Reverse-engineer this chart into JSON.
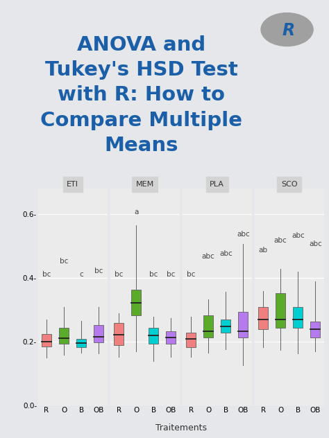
{
  "title_lines": [
    "ANOVA and",
    "Tukey's HSD Test",
    "with R: How to",
    "Compare Multiple",
    "Means"
  ],
  "title_color": "#1a5fa8",
  "title_bg": "#e5e7eb",
  "plot_outer_bg": "#e8e8e8",
  "panel_bg": "#ebebeb",
  "panel_title_bg": "#d3d3d3",
  "subplot_titles": [
    "ETI",
    "MEM",
    "PLA",
    "SCO"
  ],
  "xlabel": "Traitements",
  "xticklabels": [
    "R",
    "O",
    "B",
    "OB"
  ],
  "ylim": [
    0.0,
    0.68
  ],
  "yticks": [
    0.0,
    0.2,
    0.4,
    0.6
  ],
  "yticklabels": [
    "0.0-",
    "0.2-",
    "0.4-",
    "0.6-"
  ],
  "box_colors": [
    "#f08080",
    "#5aab2a",
    "#00ced1",
    "#b57bee"
  ],
  "box_data": {
    "ETI": {
      "R": {
        "q1": 0.183,
        "median": 0.2,
        "q3": 0.222,
        "whislo": 0.15,
        "whishi": 0.268
      },
      "O": {
        "q1": 0.192,
        "median": 0.21,
        "q3": 0.242,
        "whislo": 0.158,
        "whishi": 0.308
      },
      "B": {
        "q1": 0.182,
        "median": 0.194,
        "q3": 0.208,
        "whislo": 0.165,
        "whishi": 0.265
      },
      "OB": {
        "q1": 0.198,
        "median": 0.214,
        "q3": 0.252,
        "whislo": 0.162,
        "whishi": 0.308
      }
    },
    "MEM": {
      "R": {
        "q1": 0.188,
        "median": 0.22,
        "q3": 0.258,
        "whislo": 0.152,
        "whishi": 0.288
      },
      "O": {
        "q1": 0.282,
        "median": 0.32,
        "q3": 0.362,
        "whislo": 0.168,
        "whishi": 0.565
      },
      "B": {
        "q1": 0.192,
        "median": 0.218,
        "q3": 0.242,
        "whislo": 0.138,
        "whishi": 0.278
      },
      "OB": {
        "q1": 0.192,
        "median": 0.212,
        "q3": 0.232,
        "whislo": 0.152,
        "whishi": 0.272
      }
    },
    "PLA": {
      "R": {
        "q1": 0.182,
        "median": 0.208,
        "q3": 0.228,
        "whislo": 0.152,
        "whishi": 0.278
      },
      "O": {
        "q1": 0.212,
        "median": 0.232,
        "q3": 0.282,
        "whislo": 0.165,
        "whishi": 0.332
      },
      "B": {
        "q1": 0.228,
        "median": 0.248,
        "q3": 0.268,
        "whislo": 0.175,
        "whishi": 0.355
      },
      "OB": {
        "q1": 0.212,
        "median": 0.232,
        "q3": 0.292,
        "whislo": 0.125,
        "whishi": 0.505
      }
    },
    "SCO": {
      "R": {
        "q1": 0.238,
        "median": 0.268,
        "q3": 0.308,
        "whislo": 0.182,
        "whishi": 0.358
      },
      "O": {
        "q1": 0.242,
        "median": 0.268,
        "q3": 0.352,
        "whislo": 0.172,
        "whishi": 0.428
      },
      "B": {
        "q1": 0.242,
        "median": 0.268,
        "q3": 0.308,
        "whislo": 0.162,
        "whishi": 0.418
      },
      "OB": {
        "q1": 0.212,
        "median": 0.238,
        "q3": 0.262,
        "whislo": 0.168,
        "whishi": 0.388
      }
    }
  },
  "annotations": {
    "ETI": [
      "bc",
      "bc",
      "c",
      "bc"
    ],
    "MEM": [
      "bc",
      "a",
      "bc",
      "bc"
    ],
    "PLA": [
      "bc",
      "abc",
      "abc",
      "abc"
    ],
    "SCO": [
      "ab",
      "abc",
      "abc",
      "abc"
    ]
  },
  "ann_y": {
    "ETI": [
      0.4,
      0.44,
      0.4,
      0.41
    ],
    "MEM": [
      0.4,
      0.595,
      0.4,
      0.4
    ],
    "PLA": [
      0.4,
      0.455,
      0.465,
      0.525
    ],
    "SCO": [
      0.475,
      0.505,
      0.52,
      0.495
    ]
  }
}
